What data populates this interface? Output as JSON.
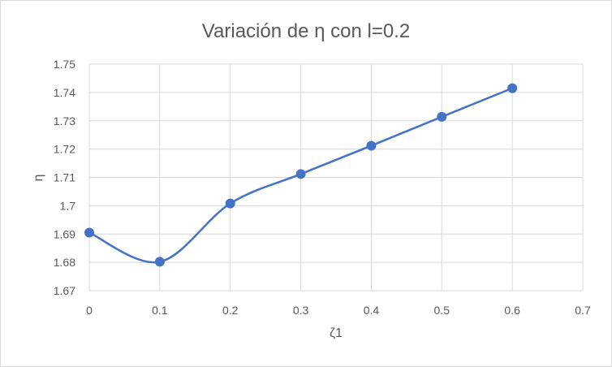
{
  "chart_data": {
    "type": "line",
    "title": "Variación de η con l=0.2",
    "xlabel": "ζ1",
    "ylabel": "η",
    "xlim": [
      0,
      0.7
    ],
    "ylim": [
      1.67,
      1.75
    ],
    "x_ticks": [
      "0",
      "0.1",
      "0.2",
      "0.3",
      "0.4",
      "0.5",
      "0.6",
      "0.7"
    ],
    "y_ticks": [
      "1.67",
      "1.68",
      "1.69",
      "1.7",
      "1.71",
      "1.72",
      "1.73",
      "1.74",
      "1.75"
    ],
    "grid": true,
    "smooth": true,
    "marker": "circle",
    "series": [
      {
        "color": "#4472C4",
        "x": [
          0,
          0.1,
          0.2,
          0.3,
          0.4,
          0.5,
          0.6
        ],
        "y": [
          1.6905,
          1.6802,
          1.7008,
          1.7112,
          1.7212,
          1.7314,
          1.7415
        ]
      }
    ]
  }
}
